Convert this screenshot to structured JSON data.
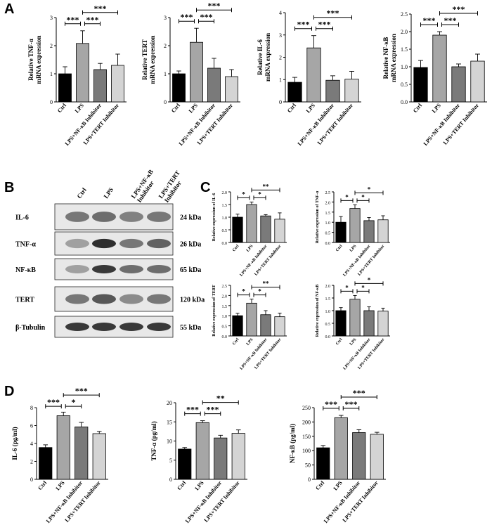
{
  "panels": {
    "a": "A",
    "b": "B",
    "c": "C",
    "d": "D"
  },
  "colors": {
    "ctrl": "#000000",
    "lps": "#a6a6a6",
    "nfkb": "#7a7a7a",
    "tert": "#d4d4d4"
  },
  "blot": {
    "lane_labels": [
      "Ctrl",
      "LPS",
      "LPS+NF-κB Inhibitor",
      "LPS+TERT Inhibitor"
    ],
    "rows": [
      {
        "name": "IL-6",
        "kda": "24 kDa"
      },
      {
        "name": "TNF-α",
        "kda": "26 kDa"
      },
      {
        "name": "NF-κB",
        "kda": "65 kDa"
      },
      {
        "name": "TERT",
        "kda": "120 kDa"
      },
      {
        "name": "β-Tubulin",
        "kda": "55 kDa"
      }
    ]
  },
  "chart_data": [
    {
      "panel": "A",
      "type": "bar",
      "ylabel": "Relative TNF-α mRNA expression",
      "categories": [
        "Ctrl",
        "LPS",
        "LPS+NF-κB Inhibitor",
        "LPS+TERT Inhibitor"
      ],
      "values": [
        1.0,
        2.08,
        1.15,
        1.3
      ],
      "errors": [
        0.25,
        0.45,
        0.22,
        0.4
      ],
      "ylim": [
        0,
        3
      ],
      "ticks": [
        0,
        1,
        2,
        3
      ],
      "sig": [
        {
          "from": 0,
          "to": 1,
          "label": "***",
          "level": 0
        },
        {
          "from": 1,
          "to": 2,
          "label": "***",
          "level": 0
        },
        {
          "from": 1,
          "to": 3,
          "label": "***",
          "level": 1
        }
      ]
    },
    {
      "panel": "A",
      "type": "bar",
      "ylabel": "Relative TERT mRNA expression",
      "categories": [
        "Ctrl",
        "LPS",
        "LPS+NF-κB Inhibitor",
        "LPS+TERT Inhibitor"
      ],
      "values": [
        1.0,
        2.12,
        1.2,
        0.9
      ],
      "errors": [
        0.1,
        0.5,
        0.35,
        0.25
      ],
      "ylim": [
        0,
        3
      ],
      "ticks": [
        0,
        1,
        2,
        3
      ],
      "sig": [
        {
          "from": 0,
          "to": 1,
          "label": "***",
          "level": 0
        },
        {
          "from": 1,
          "to": 2,
          "label": "***",
          "level": 0
        },
        {
          "from": 1,
          "to": 3,
          "label": "***",
          "level": 1
        }
      ]
    },
    {
      "panel": "A",
      "type": "bar",
      "ylabel": "Relative IL-6 mRNA expression",
      "categories": [
        "Ctrl",
        "LPS",
        "LPS+NF-κB Inhibitor",
        "LPS+TERT Inhibitor"
      ],
      "values": [
        0.88,
        2.42,
        0.97,
        1.02
      ],
      "errors": [
        0.22,
        0.55,
        0.2,
        0.35
      ],
      "ylim": [
        0,
        4
      ],
      "ticks": [
        0,
        1,
        2,
        3,
        4
      ],
      "sig": [
        {
          "from": 0,
          "to": 1,
          "label": "***",
          "level": 0
        },
        {
          "from": 1,
          "to": 2,
          "label": "***",
          "level": 0
        },
        {
          "from": 1,
          "to": 3,
          "label": "***",
          "level": 1
        }
      ]
    },
    {
      "panel": "A",
      "type": "bar",
      "ylabel": "Relative NF-κB mRNA expression",
      "categories": [
        "Ctrl",
        "LPS",
        "LPS+NF-κB Inhibitor",
        "LPS+TERT Inhibitor"
      ],
      "values": [
        0.98,
        1.9,
        1.0,
        1.16
      ],
      "errors": [
        0.2,
        0.1,
        0.08,
        0.2
      ],
      "ylim": [
        0,
        2.5
      ],
      "ticks": [
        "0.0",
        "0.5",
        "1.0",
        "1.5",
        "2.0",
        "2.5"
      ],
      "sig": [
        {
          "from": 0,
          "to": 1,
          "label": "***",
          "level": 0
        },
        {
          "from": 1,
          "to": 2,
          "label": "***",
          "level": 0
        },
        {
          "from": 1,
          "to": 3,
          "label": "***",
          "level": 1
        }
      ]
    },
    {
      "panel": "C",
      "type": "bar",
      "ylabel": "Relative expression of IL-6",
      "categories": [
        "Ctrl",
        "LPS",
        "LPS+NF-κB Inhibitor",
        "LPS+TERT Inhibitor"
      ],
      "values": [
        1.0,
        1.5,
        1.05,
        0.92
      ],
      "errors": [
        0.12,
        0.1,
        0.05,
        0.25
      ],
      "ylim": [
        0,
        2
      ],
      "ticks": [
        "0.0",
        "0.5",
        "1.0",
        "1.5",
        "2.0"
      ],
      "sig": [
        {
          "from": 0,
          "to": 1,
          "label": "*",
          "level": 0
        },
        {
          "from": 1,
          "to": 2,
          "label": "*",
          "level": 0
        },
        {
          "from": 1,
          "to": 3,
          "label": "**",
          "level": 1
        }
      ]
    },
    {
      "panel": "C",
      "type": "bar",
      "ylabel": "Relative expression of TNF-α",
      "categories": [
        "Ctrl",
        "LPS",
        "LPS+NF-κB Inhibitor",
        "LPS+TERT Inhibitor"
      ],
      "values": [
        1.0,
        1.68,
        1.08,
        1.12
      ],
      "errors": [
        0.28,
        0.18,
        0.15,
        0.2
      ],
      "ylim": [
        0,
        2.5
      ],
      "ticks": [
        "0.0",
        "0.5",
        "1.0",
        "1.5",
        "2.0",
        "2.5"
      ],
      "sig": [
        {
          "from": 0,
          "to": 1,
          "label": "*",
          "level": 0
        },
        {
          "from": 1,
          "to": 2,
          "label": "*",
          "level": 0
        },
        {
          "from": 1,
          "to": 3,
          "label": "*",
          "level": 1
        }
      ]
    },
    {
      "panel": "C",
      "type": "bar",
      "ylabel": "Relative expression of TERT",
      "categories": [
        "Ctrl",
        "LPS",
        "LPS+NF-κB Inhibitor",
        "LPS+TERT Inhibitor"
      ],
      "values": [
        1.0,
        1.62,
        1.05,
        0.95
      ],
      "errors": [
        0.12,
        0.2,
        0.2,
        0.18
      ],
      "ylim": [
        0,
        2.5
      ],
      "ticks": [
        "0.0",
        "0.5",
        "1.0",
        "1.5",
        "2.0",
        "2.5"
      ],
      "sig": [
        {
          "from": 0,
          "to": 1,
          "label": "*",
          "level": 0
        },
        {
          "from": 1,
          "to": 2,
          "label": "*",
          "level": 0
        },
        {
          "from": 1,
          "to": 3,
          "label": "**",
          "level": 1
        }
      ]
    },
    {
      "panel": "C",
      "type": "bar",
      "ylabel": "Relative expression of NF-κB",
      "categories": [
        "Ctrl",
        "LPS",
        "LPS+NF-κB Inhibitor",
        "LPS+TERT Inhibitor"
      ],
      "values": [
        1.0,
        1.45,
        1.0,
        0.98
      ],
      "errors": [
        0.12,
        0.15,
        0.15,
        0.12
      ],
      "ylim": [
        0,
        2
      ],
      "ticks": [
        "0.0",
        "0.5",
        "1.0",
        "1.5",
        "2.0"
      ],
      "sig": [
        {
          "from": 0,
          "to": 1,
          "label": "*",
          "level": 0
        },
        {
          "from": 1,
          "to": 2,
          "label": "*",
          "level": 0
        },
        {
          "from": 1,
          "to": 3,
          "label": "*",
          "level": 1
        }
      ]
    },
    {
      "panel": "D",
      "type": "bar",
      "ylabel": "IL-6 (pg/ml)",
      "categories": [
        "Ctrl",
        "LPS",
        "LPS+NF-κB Inhibitor",
        "LPS+TERT Inhibitor"
      ],
      "values": [
        3.55,
        7.1,
        5.85,
        5.1
      ],
      "errors": [
        0.3,
        0.4,
        0.5,
        0.25
      ],
      "ylim": [
        0,
        8
      ],
      "ticks": [
        0,
        2,
        4,
        6,
        8
      ],
      "sig": [
        {
          "from": 0,
          "to": 1,
          "label": "***",
          "level": 0
        },
        {
          "from": 1,
          "to": 2,
          "label": "*",
          "level": 0
        },
        {
          "from": 1,
          "to": 3,
          "label": "***",
          "level": 1
        }
      ]
    },
    {
      "panel": "D",
      "type": "bar",
      "ylabel": "TNF-α (pg/ml)",
      "categories": [
        "Ctrl",
        "LPS",
        "LPS+NF-κB Inhibitor",
        "LPS+TERT Inhibitor"
      ],
      "values": [
        7.9,
        14.8,
        10.8,
        12.0
      ],
      "errors": [
        0.4,
        0.5,
        0.7,
        0.9
      ],
      "ylim": [
        0,
        20
      ],
      "ticks": [
        0,
        5,
        10,
        15,
        20
      ],
      "sig": [
        {
          "from": 0,
          "to": 1,
          "label": "***",
          "level": 0
        },
        {
          "from": 1,
          "to": 2,
          "label": "***",
          "level": 0
        },
        {
          "from": 1,
          "to": 3,
          "label": "**",
          "level": 1
        }
      ]
    },
    {
      "panel": "D",
      "type": "bar",
      "ylabel": "NF-κB (pg/ml)",
      "categories": [
        "Ctrl",
        "LPS",
        "LPS+NF-κB Inhibitor",
        "LPS+TERT Inhibitor"
      ],
      "values": [
        110,
        215,
        163,
        157
      ],
      "errors": [
        8,
        8,
        10,
        7
      ],
      "ylim": [
        0,
        250
      ],
      "ticks": [
        0,
        50,
        100,
        150,
        200,
        250
      ],
      "sig": [
        {
          "from": 0,
          "to": 1,
          "label": "***",
          "level": 0
        },
        {
          "from": 1,
          "to": 2,
          "label": "***",
          "level": 0
        },
        {
          "from": 1,
          "to": 3,
          "label": "***",
          "level": 1
        }
      ]
    }
  ]
}
